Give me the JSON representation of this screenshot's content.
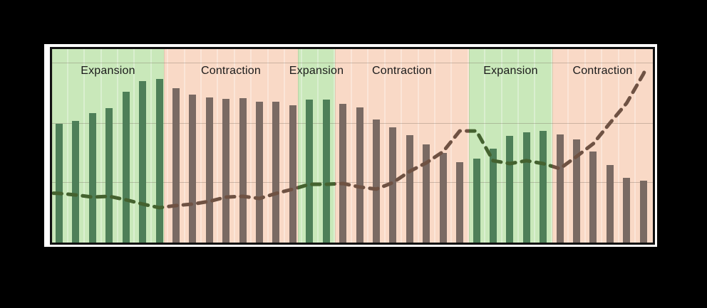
{
  "chart_data": {
    "type": "bar+line",
    "legend": "none",
    "ylim": [
      0,
      100
    ],
    "gridline_values_pct": [
      31.2,
      61.8,
      93.0
    ],
    "bands": [
      {
        "label": "Expansion",
        "phase": "expansion",
        "x_start_pct": 0,
        "x_end_pct": 18.62,
        "bar_count": 7
      },
      {
        "label": "Contraction",
        "phase": "contraction",
        "x_start_pct": 18.62,
        "x_end_pct": 40.93,
        "bar_count": 8
      },
      {
        "label": "Expansion",
        "phase": "expansion",
        "x_start_pct": 40.93,
        "x_end_pct": 47.09,
        "bar_count": 2
      },
      {
        "label": "Contraction",
        "phase": "contraction",
        "x_start_pct": 47.09,
        "x_end_pct": 69.4,
        "bar_count": 8
      },
      {
        "label": "Expansion",
        "phase": "expansion",
        "x_start_pct": 69.4,
        "x_end_pct": 83.27,
        "bar_count": 5
      },
      {
        "label": "Contraction",
        "phase": "contraction",
        "x_start_pct": 83.27,
        "x_end_pct": 100,
        "bar_count": 6
      }
    ],
    "series": [
      {
        "name": "bars",
        "type": "bar",
        "values": [
          61.4,
          62.9,
          66.9,
          69.5,
          77.9,
          83.5,
          84.6,
          79.8,
          76.5,
          75.0,
          74.3,
          74.6,
          72.8,
          72.8,
          71.0,
          73.9,
          73.9,
          71.7,
          69.9,
          63.6,
          59.6,
          55.5,
          50.7,
          46.3,
          41.5,
          43.4,
          48.5,
          55.1,
          57.0,
          57.7,
          55.9,
          53.3,
          47.1,
          40.1,
          33.5,
          32.0
        ]
      },
      {
        "name": "dashed-trend-line",
        "type": "line",
        "start_value_pct": 25.5,
        "values": [
          25.4,
          24.6,
          23.5,
          23.9,
          22.1,
          19.9,
          18.0,
          19.1,
          19.9,
          21.3,
          23.5,
          23.9,
          22.8,
          25.4,
          27.6,
          30.1,
          30.1,
          30.5,
          28.7,
          27.6,
          31.0,
          36.8,
          41.2,
          47.0,
          57.7,
          57.7,
          42.3,
          40.8,
          42.3,
          40.8,
          38.2,
          44.5,
          51.1,
          61.8,
          72.1,
          87.1
        ],
        "end_value_pct": 90.4
      }
    ]
  },
  "colors": {
    "background": "#000000",
    "slide": "#ffffff",
    "frame_border": "#111111",
    "expansion_band": "#c9e8ba",
    "contraction_band": "#f9d9c6",
    "expansion_bar": "#4e7f58",
    "contraction_bar": "#7a6a63",
    "expansion_line": "#44622f",
    "contraction_line": "#6f5243",
    "gridline": "rgba(110,95,85,0.32)",
    "label_text": "#1b1b1b"
  }
}
